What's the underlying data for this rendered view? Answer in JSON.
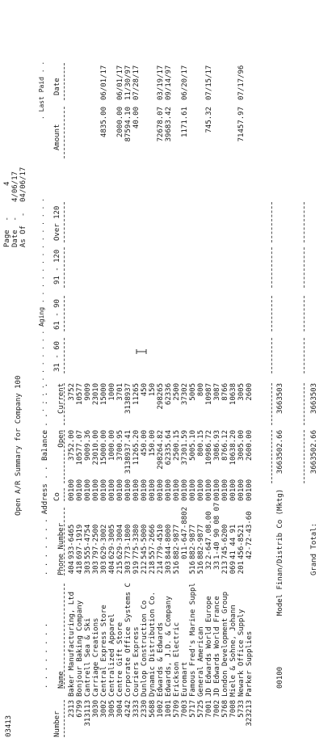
{
  "report": {
    "program_id": "03413",
    "title": "Open A/R Summary for Company 100",
    "page_label": "Page  -",
    "page_number": "4",
    "date_label": "Date  -",
    "date_value": "4/06/17",
    "asof_label": "As Of  -",
    "asof_value": "04/06/17"
  },
  "headers": {
    "aging_line": ". . . . . . . . . . . Aging . . . . . . . . . . . . . .",
    "last_paid_line": ". Last Paid . .",
    "number": "Number",
    "name": ". . . . . . . .\nName",
    "address": ". . . . . . . Address . . . . . . . .\nPhone Number",
    "co": "Co",
    "balance": "Balance\nOpen",
    "current": ". . .\nCurrent",
    "c31_60": "31 - 60",
    "c61_90": "61 - 90",
    "c91_120": "91 - 120",
    "over120": "Over 120",
    "amount": "Amount",
    "date": "Date"
  },
  "rows": [
    {
      "number": "2313",
      "name": "Baker Manufacturing, Ltd",
      "area": "404",
      "phone": "933-6465",
      "co": "00100",
      "balance": "3752.00",
      "current": "3752",
      "amount": "",
      "date": ""
    },
    {
      "number": "6799",
      "name": "Bonjour Baking Company",
      "area": "418",
      "phone": "697-1919",
      "co": "00100",
      "balance": "10577.07",
      "current": "10577",
      "amount": "",
      "date": ""
    },
    {
      "number": "313113",
      "name": "Cantrell Sea & Ski",
      "area": "303",
      "phone": "555-4754",
      "co": "00100",
      "balance": "9009.36",
      "current": "9009",
      "amount": "",
      "date": ""
    },
    {
      "number": "3030",
      "name": "Carriage Creations",
      "area": "303",
      "phone": "797-2500",
      "co": "00100",
      "balance": "23010.00",
      "current": "23010",
      "amount": "",
      "date": ""
    },
    {
      "number": "3002",
      "name": "Central Express Store",
      "area": "303",
      "phone": "629-3002",
      "co": "00100",
      "balance": "15000.00",
      "current": "15000",
      "amount": "4835.00",
      "date": "06/01/17"
    },
    {
      "number": "3005",
      "name": "Centralized Apparel",
      "area": "404",
      "phone": "629-3005",
      "co": "00100",
      "balance": "1000.00",
      "current": "1000",
      "amount": "",
      "date": ""
    },
    {
      "number": "3004",
      "name": "Centre Gift Store",
      "area": "215",
      "phone": "629-3004",
      "co": "00100",
      "balance": "3700.95",
      "current": "3701",
      "amount": "2000.00",
      "date": "06/01/17"
    },
    {
      "number": "4242",
      "name": "Corporate Office Systems C",
      "area": "303",
      "phone": "773-1800",
      "co": "00100",
      "balance": "3138937.41",
      "current": "3138937",
      "amount": "87594.10",
      "date": "11/30/97"
    },
    {
      "number": "3333",
      "name": "Couriers Express",
      "area": "919",
      "phone": "775-3380",
      "co": "00100",
      "balance": "11265.20",
      "current": "11265",
      "amount": "40.00",
      "date": "07/28/17"
    },
    {
      "number": "2330",
      "name": "Dunlop Construction Co",
      "area": "212",
      "phone": "545-5000",
      "co": "00100",
      "balance": "450.00",
      "current": "450",
      "amount": "",
      "date": ""
    },
    {
      "number": "5688",
      "name": "Dynamic Distribution Co.",
      "area": "218",
      "phone": "557-2666",
      "co": "00100",
      "balance": "150.00",
      "current": "150",
      "amount": "",
      "date": ""
    },
    {
      "number": "1002",
      "name": "Edwards & Edwards",
      "area": "214",
      "phone": "779-4510",
      "co": "00100",
      "balance": "298264.82",
      "current": "298265",
      "amount": "72678.07",
      "date": "03/19/17"
    },
    {
      "number": "1001",
      "name": "Edwards, J.D. & Company",
      "area": "303",
      "phone": "844-8000",
      "co": "00100",
      "balance": "62335.64",
      "current": "62336",
      "amount": "39683.42",
      "date": "09/14/97"
    },
    {
      "number": "5709",
      "name": "Erickson Electric",
      "area": "516",
      "phone": "882-9877",
      "co": "00100",
      "balance": "2500.15",
      "current": "2500",
      "amount": "",
      "date": ""
    },
    {
      "number": "7003",
      "name": "Euromart",
      "area": "",
      "phone": "011-647-8802",
      "co": "00100",
      "balance": "37301.59",
      "current": "37302",
      "amount": "1171.61",
      "date": "06/20/17"
    },
    {
      "number": "5717",
      "name": "Famous Fred's Marine Suppl",
      "area": "516",
      "phone": "882-9877",
      "co": "00100",
      "balance": "5005.10",
      "current": "5005",
      "amount": "",
      "date": ""
    },
    {
      "number": "5725",
      "name": "General American",
      "area": "516",
      "phone": "882-9877",
      "co": "00100",
      "balance": "800.15",
      "current": "800",
      "amount": "",
      "date": ""
    },
    {
      "number": "7001",
      "name": "JD Edwards World Europe",
      "area": "32",
      "phone": "2-647.08.00",
      "co": "00100",
      "balance": "10986.72",
      "current": "10987",
      "amount": "745.32",
      "date": "07/15/17"
    },
    {
      "number": "7002",
      "name": "JD Edwards World France",
      "area": "33",
      "phone": "1-40 90 08 07",
      "co": "00100",
      "balance": "3086.93",
      "current": "3087",
      "amount": "",
      "date": ""
    },
    {
      "number": "5768",
      "name": "London Development Group",
      "area": "213",
      "phone": "745-6200",
      "co": "00100",
      "balance": "8766.12",
      "current": "8766",
      "amount": "",
      "date": ""
    },
    {
      "number": "7008",
      "name": "Miele & Sohne, Johann",
      "area": "069",
      "phone": "41 44 91",
      "co": "00100",
      "balance": "10638.20",
      "current": "10638",
      "amount": "",
      "date": ""
    },
    {
      "number": "5733",
      "name": "Newark Office Supply",
      "area": "201",
      "phone": "456-8521",
      "co": "00100",
      "balance": "3005.00",
      "current": "3005",
      "amount": "71457.97",
      "date": "07/17/96"
    },
    {
      "number": "323213",
      "name": "Parker Supplies",
      "area": "",
      "phone": "42-72-43-60",
      "co": "00100",
      "balance": "2600.00",
      "current": "2600",
      "amount": "",
      "date": ""
    }
  ],
  "subtotal": {
    "co": "00100",
    "label": "Model Finan/Distrib Co (Mktg)",
    "balance": "3663502.66",
    "current": "3663503"
  },
  "grand_total": {
    "label": "Grand Total:",
    "balance": "3663502.66",
    "current": "3663503"
  },
  "icons": {
    "cursor": "text-cursor-icon"
  }
}
